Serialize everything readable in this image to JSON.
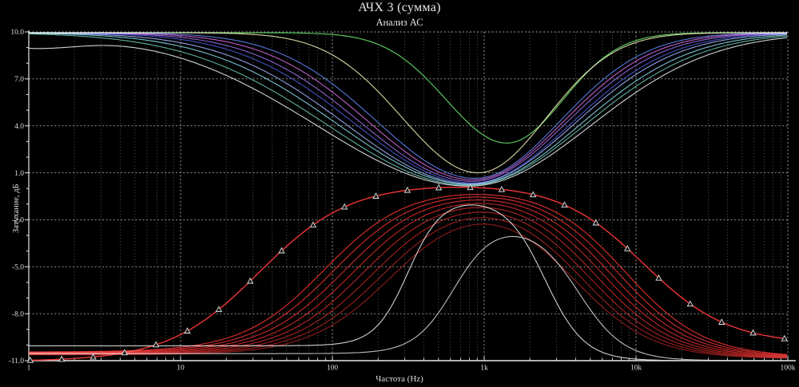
{
  "header": {
    "title": "АЧХ 3 (сумма)",
    "subtitle": "Анализ АС"
  },
  "axes": {
    "x": {
      "label": "Частота (Hz)",
      "scale": "log",
      "min_hz": 1,
      "max_hz": 100000,
      "tick_labels": [
        "1",
        "10",
        "100",
        "1k",
        "10k",
        "100k"
      ]
    },
    "y": {
      "label": "Затухание, дБ",
      "min_db": -11,
      "max_db": 10,
      "major_step_db": 3,
      "major_ticks_db": [
        10,
        7,
        4,
        1,
        -2,
        -5,
        -8,
        -11
      ],
      "tick_labels": [
        "10.0",
        "7.0",
        "4.0",
        "1.0",
        "-2.0",
        "-5.0",
        "-8.0",
        "-11.0"
      ]
    }
  },
  "style": {
    "background": "#000000",
    "grid_color": "#c6ccc6",
    "axis_color": "#e8e8e8",
    "marker_color": "#e2e2e2",
    "marker_fill": "#161616"
  },
  "chart_data": {
    "type": "line",
    "title": "АЧХ 3 (сумма)",
    "subtitle": "Анализ АС",
    "xlabel": "Частота (Hz)",
    "ylabel": "Затухание, дБ",
    "x_scale": "log",
    "xlim_hz": [
      1,
      100000
    ],
    "ylim_db": [
      -11,
      10
    ],
    "grid": true,
    "legend": "none",
    "series": [
      {
        "name": "sum-notch-gray",
        "group": "upper-sum",
        "shape": "notch",
        "color": "#cdd2d6",
        "width": 1.1,
        "plateau_db": 9.95,
        "min_db": 0.15,
        "center_hz": 795,
        "sigma_left_dec": 1.0,
        "sigma_right_dec": 0.8,
        "low_end_dip_db": 0.85
      },
      {
        "name": "sum-notch-teal",
        "group": "upper-sum",
        "shape": "notch",
        "color": "#5fae9e",
        "width": 1.1,
        "plateau_db": 9.95,
        "min_db": 0.2,
        "center_hz": 795,
        "sigma_left_dec": 0.93,
        "sigma_right_dec": 0.76
      },
      {
        "name": "sum-notch-cyan",
        "group": "upper-sum",
        "shape": "notch",
        "color": "#7ac0d0",
        "width": 1.1,
        "plateau_db": 9.95,
        "min_db": 0.25,
        "center_hz": 813,
        "sigma_left_dec": 0.87,
        "sigma_right_dec": 0.72
      },
      {
        "name": "sum-notch-periwinkle",
        "group": "upper-sum",
        "shape": "notch",
        "color": "#8f9fe0",
        "width": 1.1,
        "plateau_db": 9.95,
        "min_db": 0.3,
        "center_hz": 813,
        "sigma_left_dec": 0.82,
        "sigma_right_dec": 0.68
      },
      {
        "name": "sum-notch-navy",
        "group": "upper-sum",
        "shape": "notch",
        "color": "#4450bf",
        "width": 1.1,
        "plateau_db": 9.95,
        "min_db": 0.35,
        "center_hz": 832,
        "sigma_left_dec": 0.77,
        "sigma_right_dec": 0.65
      },
      {
        "name": "sum-notch-purple",
        "group": "upper-sum",
        "shape": "notch",
        "color": "#8a63cf",
        "width": 1.1,
        "plateau_db": 9.95,
        "min_db": 0.45,
        "center_hz": 832,
        "sigma_left_dec": 0.73,
        "sigma_right_dec": 0.62
      },
      {
        "name": "sum-notch-magenta",
        "group": "upper-sum",
        "shape": "notch",
        "color": "#bf5fc4",
        "width": 1.1,
        "plateau_db": 9.95,
        "min_db": 0.55,
        "center_hz": 851,
        "sigma_left_dec": 0.69,
        "sigma_right_dec": 0.59
      },
      {
        "name": "sum-notch-blue",
        "group": "upper-sum",
        "shape": "notch",
        "color": "#5577d8",
        "width": 1.1,
        "plateau_db": 9.95,
        "min_db": 0.65,
        "center_hz": 871,
        "sigma_left_dec": 0.65,
        "sigma_right_dec": 0.56
      },
      {
        "name": "sum-notch-paleyellow",
        "group": "upper-sum",
        "shape": "notch",
        "color": "#d9d4a4",
        "width": 1.1,
        "plateau_db": 9.95,
        "min_db": 1.0,
        "center_hz": 912,
        "sigma_left_dec": 0.5,
        "sigma_right_dec": 0.45
      },
      {
        "name": "sum-notch-green",
        "group": "upper-sum",
        "shape": "notch",
        "color": "#5ac45e",
        "width": 1.2,
        "plateau_db": 9.95,
        "min_db": 2.9,
        "center_hz": 1410,
        "sigma_left_dec": 0.4,
        "sigma_right_dec": 0.37
      },
      {
        "name": "band-red-1",
        "group": "bandpass-red",
        "shape": "bandpass",
        "color": "#d02c2c",
        "width": 1.2,
        "peak_db": 0.12,
        "left_plateau_db": -10.45,
        "right_plateau_db": -10.78,
        "rise_hz": 89,
        "rise_width_dec": 0.27,
        "fall_hz": 8500,
        "fall_width_dec": 0.26
      },
      {
        "name": "band-red-2",
        "group": "bandpass-red",
        "shape": "bandpass",
        "color": "#c62929",
        "width": 1.2,
        "peak_db": 0.07,
        "left_plateau_db": -10.475,
        "right_plateau_db": -10.795,
        "rise_hz": 103,
        "rise_width_dec": 0.27,
        "fall_hz": 7590,
        "fall_width_dec": 0.26
      },
      {
        "name": "band-red-3",
        "group": "bandpass-red",
        "shape": "bandpass",
        "color": "#bc2727",
        "width": 1.2,
        "peak_db": 0.02,
        "left_plateau_db": -10.5,
        "right_plateau_db": -10.81,
        "rise_hz": 120,
        "rise_width_dec": 0.27,
        "fall_hz": 6760,
        "fall_width_dec": 0.26
      },
      {
        "name": "band-red-4",
        "group": "bandpass-red",
        "shape": "bandpass",
        "color": "#b22424",
        "width": 1.2,
        "peak_db": -0.03,
        "left_plateau_db": -10.525,
        "right_plateau_db": -10.825,
        "rise_hz": 139,
        "rise_width_dec": 0.27,
        "fall_hz": 6030,
        "fall_width_dec": 0.26
      },
      {
        "name": "band-red-5",
        "group": "bandpass-red",
        "shape": "bandpass",
        "color": "#a72222",
        "width": 1.2,
        "peak_db": -0.08,
        "left_plateau_db": -10.55,
        "right_plateau_db": -10.84,
        "rise_hz": 161,
        "rise_width_dec": 0.27,
        "fall_hz": 5370,
        "fall_width_dec": 0.26
      },
      {
        "name": "band-red-6",
        "group": "bandpass-red",
        "shape": "bandpass",
        "color": "#9c1f1f",
        "width": 1.2,
        "peak_db": -0.13,
        "left_plateau_db": -10.575,
        "right_plateau_db": -10.855,
        "rise_hz": 187,
        "rise_width_dec": 0.27,
        "fall_hz": 4790,
        "fall_width_dec": 0.26
      },
      {
        "name": "band-red-7",
        "group": "bandpass-red",
        "shape": "bandpass",
        "color": "#911d1d",
        "width": 1.2,
        "peak_db": -0.18,
        "left_plateau_db": -10.6,
        "right_plateau_db": -10.87,
        "rise_hz": 217,
        "rise_width_dec": 0.27,
        "fall_hz": 4270,
        "fall_width_dec": 0.26
      },
      {
        "name": "band-red-8",
        "group": "bandpass-red",
        "shape": "bandpass",
        "color": "#861a1a",
        "width": 1.2,
        "peak_db": -0.23,
        "left_plateau_db": -10.625,
        "right_plateau_db": -10.885,
        "rise_hz": 251,
        "rise_width_dec": 0.27,
        "fall_hz": 3800,
        "fall_width_dec": 0.26
      },
      {
        "name": "bell-gray-tall",
        "group": "gray-bell",
        "shape": "bandpass",
        "color": "#cfcfcf",
        "width": 1.1,
        "peak_db": -0.6,
        "left_plateau_db": -10.05,
        "right_plateau_db": -11.0,
        "rise_hz": 316,
        "rise_width_dec": 0.11,
        "fall_hz": 2512,
        "fall_width_dec": 0.13
      },
      {
        "name": "bell-gray-small",
        "group": "gray-bell",
        "shape": "bandpass",
        "color": "#bdbdbd",
        "width": 1.1,
        "peak_db": -2.2,
        "left_plateau_db": -10.55,
        "right_plateau_db": -11.0,
        "rise_hz": 631,
        "rise_width_dec": 0.13,
        "fall_hz": 4170,
        "fall_width_dec": 0.15
      },
      {
        "name": "band-red-marked",
        "group": "bandpass-red",
        "shape": "bandpass",
        "color": "#e23333",
        "width": 1.5,
        "peak_db": 0.35,
        "left_plateau_db": -11.05,
        "right_plateau_db": -9.95,
        "rise_hz": 33,
        "rise_width_dec": 0.3,
        "fall_hz": 11200,
        "fall_width_dec": 0.28
      }
    ],
    "markers": {
      "on_series": "band-red-marked",
      "symbol": "triangle-up-open",
      "start_dec": 0.01,
      "step_dec": 0.207,
      "count": 25
    }
  }
}
